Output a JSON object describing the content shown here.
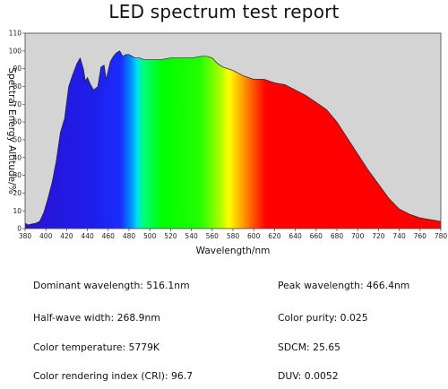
{
  "chart_data": {
    "type": "area",
    "title": "LED spectrum test report",
    "xlabel": "Wavelength/nm",
    "ylabel": "Spectral Energy Altitude/%",
    "xlim": [
      380,
      780
    ],
    "ylim": [
      0,
      110
    ],
    "xticks": [
      "380",
      "400",
      "420",
      "440",
      "460",
      "480",
      "500",
      "520",
      "540",
      "560",
      "580",
      "600",
      "620",
      "640",
      "660",
      "680",
      "700",
      "720",
      "740",
      "760",
      "780"
    ],
    "yticks": [
      "0",
      "10",
      "20",
      "30",
      "40",
      "50",
      "60",
      "70",
      "80",
      "90",
      "100",
      "110"
    ],
    "grid": false,
    "legend": "none",
    "background_color": "#d4d4d4",
    "fill": "visible-spectrum rainbow gradient",
    "series": [
      {
        "x": [
          380,
          383,
          386,
          390,
          394,
          398,
          402,
          406,
          410,
          414,
          418,
          422,
          426,
          430,
          433,
          436,
          438,
          440,
          443,
          446,
          450,
          453,
          456,
          458,
          462,
          465,
          468,
          471,
          474,
          477,
          480,
          483,
          486,
          490,
          495,
          500,
          510,
          520,
          530,
          540,
          550,
          555,
          560,
          565,
          570,
          580,
          590,
          600,
          610,
          620,
          630,
          640,
          650,
          660,
          670,
          680,
          690,
          700,
          710,
          720,
          730,
          740,
          750,
          760,
          770,
          780
        ],
        "values": [
          3,
          2,
          2.5,
          3,
          4,
          9,
          17,
          26,
          38,
          54,
          62,
          80,
          87,
          93,
          96,
          90,
          83,
          85,
          81,
          78,
          80,
          91,
          92,
          84,
          94,
          97,
          99,
          100,
          97,
          98,
          98,
          97,
          96,
          96,
          95,
          95,
          95,
          96,
          96,
          96,
          97,
          97,
          96,
          93,
          91,
          89,
          86,
          84,
          84,
          82,
          81,
          78,
          75,
          71,
          67,
          60,
          51,
          42,
          33,
          25,
          17,
          11,
          8,
          6,
          5,
          4
        ]
      }
    ]
  },
  "metrics": [
    {
      "label": "Dominant wavelength: 516.1nm"
    },
    {
      "label": "Peak wavelength: 466.4nm"
    },
    {
      "label": "Half-wave width: 268.9nm"
    },
    {
      "label": "Color purity: 0.025"
    },
    {
      "label": "Color temperature: 5779K"
    },
    {
      "label": "SDCM: 25.65"
    },
    {
      "label": "Color rendering index (CRI): 96.7"
    },
    {
      "label": "DUV: 0.0052"
    }
  ]
}
